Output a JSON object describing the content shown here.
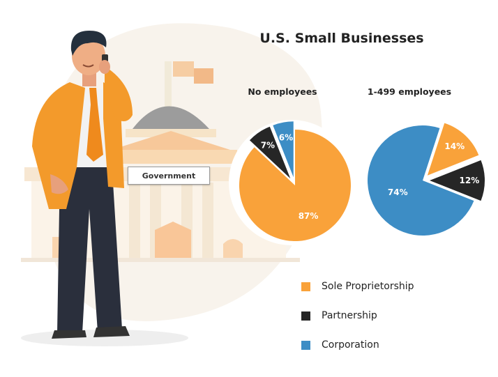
{
  "title": "U.S. Small Businesses",
  "sign_text": "Government",
  "colors": {
    "sole": "#f9a23a",
    "partnership": "#262626",
    "corporation": "#3d8dc5"
  },
  "chart_data": [
    {
      "type": "pie",
      "title": "No employees",
      "slices": [
        {
          "label": "Sole Proprietorship",
          "value": 87,
          "text": "87%",
          "color": "#f9a23a"
        },
        {
          "label": "Partnership",
          "value": 7,
          "text": "7%",
          "color": "#262626"
        },
        {
          "label": "Corporation",
          "value": 6,
          "text": "6%",
          "color": "#3d8dc5"
        }
      ]
    },
    {
      "type": "pie",
      "title": "1-499 employees",
      "slices": [
        {
          "label": "Sole Proprietorship",
          "value": 14,
          "text": "14%",
          "color": "#f9a23a"
        },
        {
          "label": "Partnership",
          "value": 12,
          "text": "12%",
          "color": "#262626"
        },
        {
          "label": "Corporation",
          "value": 74,
          "text": "74%",
          "color": "#3d8dc5"
        }
      ]
    }
  ],
  "legend": [
    {
      "label": "Sole Proprietorship",
      "color": "#f9a23a"
    },
    {
      "label": "Partnership",
      "color": "#262626"
    },
    {
      "label": "Corporation",
      "color": "#3d8dc5"
    }
  ]
}
